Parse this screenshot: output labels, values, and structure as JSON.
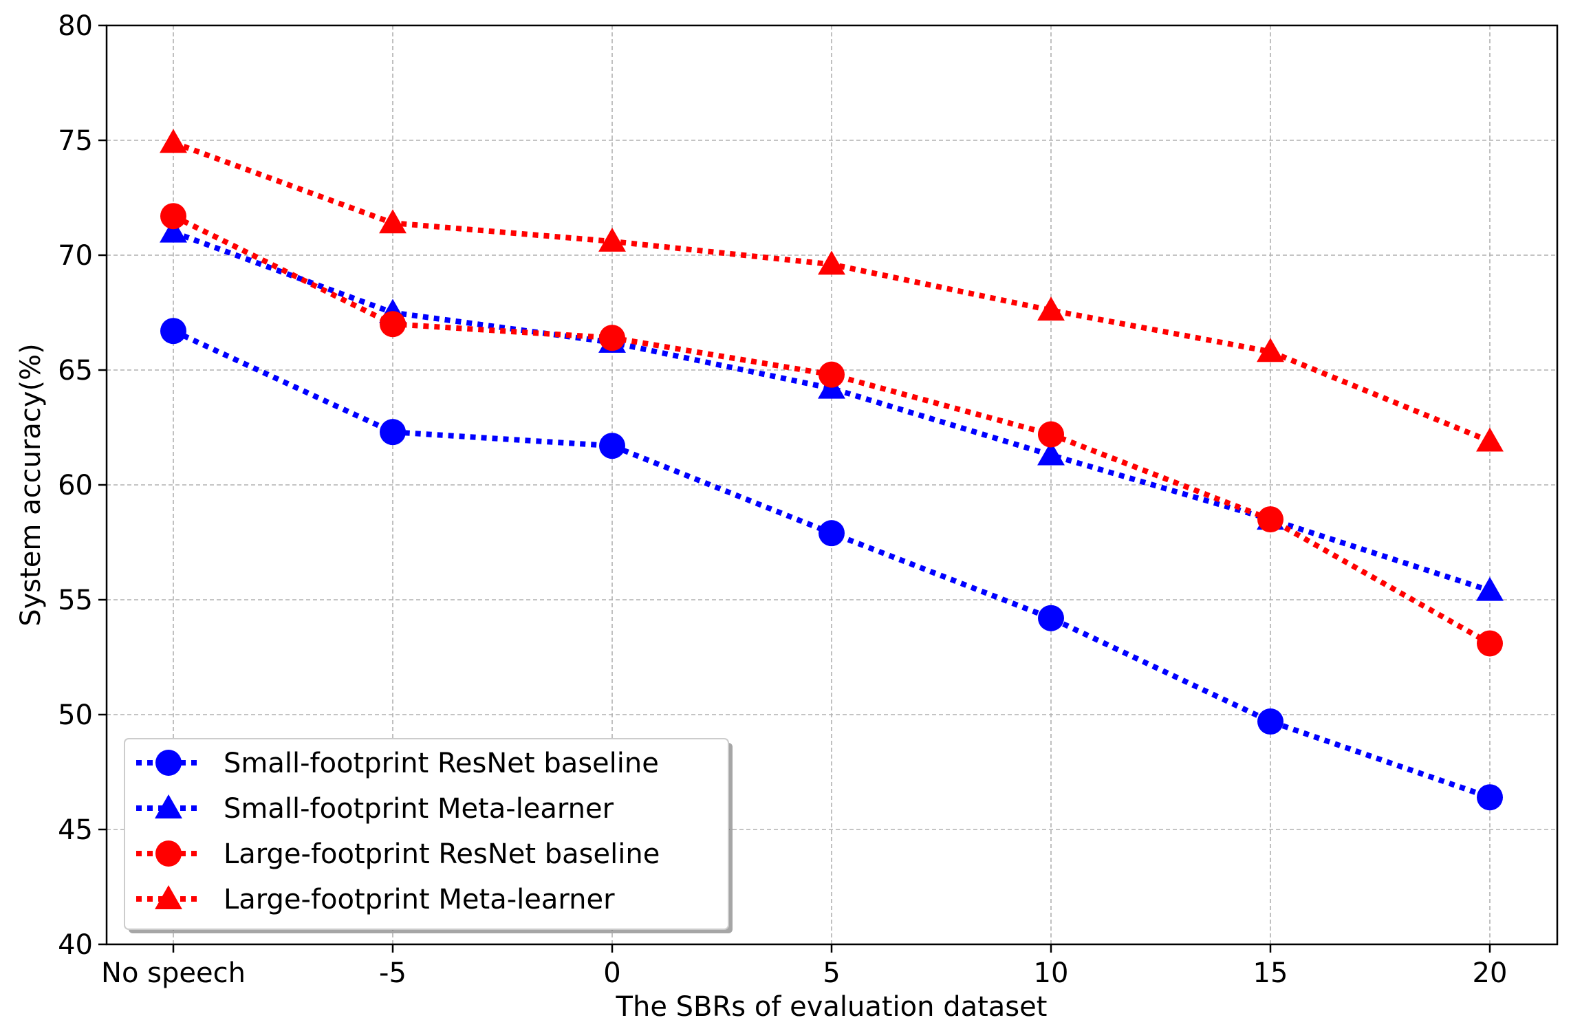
{
  "chart_data": {
    "type": "line",
    "title": "",
    "xlabel": "The SBRs of evaluation dataset",
    "ylabel": "System accuracy(%)",
    "categories": [
      "No speech",
      "-5",
      "0",
      "5",
      "10",
      "15",
      "20"
    ],
    "ylim": [
      40,
      80
    ],
    "yticks": [
      40,
      45,
      50,
      55,
      60,
      65,
      70,
      75,
      80
    ],
    "grid": true,
    "legend_position": "lower-left",
    "series": [
      {
        "name": "Small-footprint ResNet baseline",
        "color": "#0000ff",
        "marker": "circle",
        "values": [
          66.7,
          62.3,
          61.7,
          57.9,
          54.2,
          49.7,
          46.4
        ]
      },
      {
        "name": "Small-footprint Meta-learner",
        "color": "#0000ff",
        "marker": "triangle",
        "values": [
          71.0,
          67.5,
          66.2,
          64.2,
          61.3,
          58.5,
          55.4
        ]
      },
      {
        "name": "Large-footprint ResNet baseline",
        "color": "#ff0000",
        "marker": "circle",
        "values": [
          71.7,
          67.0,
          66.4,
          64.8,
          62.2,
          58.5,
          53.1
        ]
      },
      {
        "name": "Large-footprint Meta-learner",
        "color": "#ff0000",
        "marker": "triangle",
        "values": [
          74.9,
          71.4,
          70.6,
          69.6,
          67.6,
          65.8,
          61.9
        ]
      }
    ]
  }
}
